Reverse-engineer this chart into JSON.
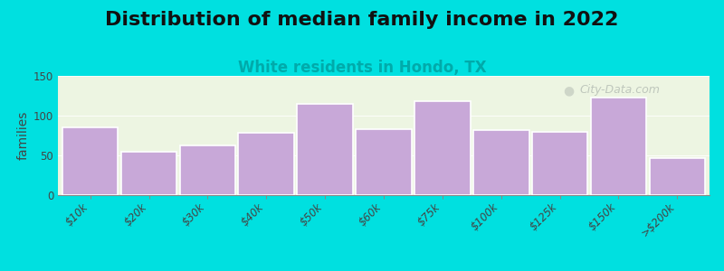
{
  "title": "Distribution of median family income in 2022",
  "subtitle": "White residents in Hondo, TX",
  "ylabel": "families",
  "categories": [
    "$10k",
    "$20k",
    "$30k",
    "$40k",
    "$50k",
    "$60k",
    "$75k",
    "$100k",
    "$125k",
    "$150k",
    ">$200k"
  ],
  "values": [
    85,
    55,
    63,
    78,
    115,
    83,
    118,
    82,
    80,
    123,
    47
  ],
  "bar_color": "#c8a8d8",
  "bar_edge_color": "#ffffff",
  "background_outer": "#00e0e0",
  "background_plot": "#f5f8ee",
  "title_fontsize": 16,
  "subtitle_fontsize": 12,
  "subtitle_color": "#00aaaa",
  "ylabel_fontsize": 10,
  "tick_fontsize": 8.5,
  "ylim": [
    0,
    150
  ],
  "yticks": [
    0,
    50,
    100,
    150
  ],
  "watermark_text": "City-Data.com",
  "watermark_color": "#b0b8b0"
}
